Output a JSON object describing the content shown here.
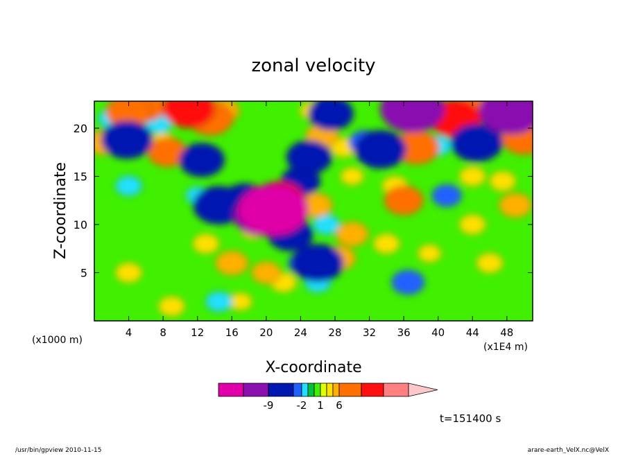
{
  "chart_data": {
    "type": "heatmap",
    "title": "zonal velocity",
    "xlabel": "X-coordinate",
    "ylabel": "Z-coordinate",
    "x_units_left": "(x1000 m)",
    "x_units_right": "(x1E4 m)",
    "xlim": [
      0,
      51
    ],
    "ylim": [
      0,
      22.8
    ],
    "x_ticks": [
      4,
      8,
      12,
      16,
      20,
      24,
      28,
      32,
      36,
      40,
      44,
      48
    ],
    "y_ticks": [
      5,
      10,
      15,
      20
    ],
    "colorbar": {
      "ticks": [
        {
          "value": -9,
          "label": "-9"
        },
        {
          "value": -2,
          "label": "-2"
        },
        {
          "value": 1,
          "label": "1"
        },
        {
          "value": 6,
          "label": "6"
        }
      ],
      "colors": [
        "#e000a8",
        "#8a10b0",
        "#0018b0",
        "#2060ff",
        "#20e0ff",
        "#00c040",
        "#40f000",
        "#e0ff00",
        "#ffe000",
        "#ffb000",
        "#ff7000",
        "#ff1010",
        "#ff8080",
        "#ffc8c8"
      ]
    },
    "annotation": "t=151400 s",
    "features": [
      {
        "x": 4,
        "z": 21.7,
        "v": 5
      },
      {
        "x": 6,
        "z": 22.2,
        "v": 4
      },
      {
        "x": 11,
        "z": 22,
        "v": 6
      },
      {
        "x": 13.5,
        "z": 21,
        "v": 5
      },
      {
        "x": 15,
        "z": 21.8,
        "v": 3
      },
      {
        "x": 2,
        "z": 21,
        "v": -2
      },
      {
        "x": 3.8,
        "z": 18.8,
        "v": -6
      },
      {
        "x": 1,
        "z": 18.5,
        "v": 3
      },
      {
        "x": 8.5,
        "z": 17.5,
        "v": 4
      },
      {
        "x": 8,
        "z": 18.5,
        "v": 2
      },
      {
        "x": 12.5,
        "z": 16.7,
        "v": -5
      },
      {
        "x": 7.5,
        "z": 20.5,
        "v": -2
      },
      {
        "x": 4,
        "z": 14,
        "v": -2
      },
      {
        "x": 12,
        "z": 13,
        "v": -1.5
      },
      {
        "x": 14.5,
        "z": 12,
        "v": -6
      },
      {
        "x": 17.5,
        "z": 12.5,
        "v": -5
      },
      {
        "x": 19.5,
        "z": 11,
        "v": -7
      },
      {
        "x": 20.8,
        "z": 11.5,
        "v": -9
      },
      {
        "x": 21.5,
        "z": 12.5,
        "v": 6
      },
      {
        "x": 22.5,
        "z": 12.5,
        "v": 4
      },
      {
        "x": 22.8,
        "z": 9,
        "v": -5
      },
      {
        "x": 24,
        "z": 14.5,
        "v": -4
      },
      {
        "x": 25,
        "z": 17,
        "v": -5
      },
      {
        "x": 26.5,
        "z": 19.2,
        "v": 3
      },
      {
        "x": 27.5,
        "z": 21.5,
        "v": -5
      },
      {
        "x": 25.5,
        "z": 21.8,
        "v": 2
      },
      {
        "x": 29,
        "z": 18,
        "v": 2
      },
      {
        "x": 31.5,
        "z": 18.5,
        "v": -3
      },
      {
        "x": 33.3,
        "z": 17.8,
        "v": -6
      },
      {
        "x": 30,
        "z": 15,
        "v": 1.5
      },
      {
        "x": 25.8,
        "z": 12,
        "v": 3
      },
      {
        "x": 26,
        "z": 6,
        "v": -6
      },
      {
        "x": 28.5,
        "z": 6.5,
        "v": 3
      },
      {
        "x": 26,
        "z": 4,
        "v": -2
      },
      {
        "x": 37,
        "z": 22,
        "v": -8
      },
      {
        "x": 37.5,
        "z": 18,
        "v": 5
      },
      {
        "x": 35,
        "z": 14,
        "v": 2
      },
      {
        "x": 36,
        "z": 12.5,
        "v": 4
      },
      {
        "x": 42,
        "z": 21,
        "v": 6
      },
      {
        "x": 44,
        "z": 22,
        "v": 4
      },
      {
        "x": 40,
        "z": 18.2,
        "v": -2
      },
      {
        "x": 44.5,
        "z": 18.5,
        "v": -6
      },
      {
        "x": 48.5,
        "z": 21.8,
        "v": -8
      },
      {
        "x": 50,
        "z": 19,
        "v": 5
      },
      {
        "x": 46,
        "z": 19,
        "v": 1
      },
      {
        "x": 44,
        "z": 15,
        "v": 2
      },
      {
        "x": 44,
        "z": 10,
        "v": 2
      },
      {
        "x": 49,
        "z": 12,
        "v": 3
      },
      {
        "x": 41,
        "z": 13,
        "v": -2.5
      },
      {
        "x": 36.5,
        "z": 4,
        "v": -3
      },
      {
        "x": 39,
        "z": 7,
        "v": 1.5
      },
      {
        "x": 4,
        "z": 5,
        "v": 2
      },
      {
        "x": 9,
        "z": 1.5,
        "v": 2
      },
      {
        "x": 13,
        "z": 8,
        "v": 2
      },
      {
        "x": 16,
        "z": 6,
        "v": 3
      },
      {
        "x": 14.5,
        "z": 2,
        "v": -2
      },
      {
        "x": 17,
        "z": 2,
        "v": 1.5
      },
      {
        "x": 20,
        "z": 5,
        "v": 2.5
      },
      {
        "x": 22,
        "z": 4,
        "v": 2
      },
      {
        "x": 18.5,
        "z": 9.5,
        "v": 2
      },
      {
        "x": 30,
        "z": 9,
        "v": 3
      },
      {
        "x": 27,
        "z": 10,
        "v": -2
      },
      {
        "x": 24.5,
        "z": 6,
        "v": -3
      },
      {
        "x": 34,
        "z": 8,
        "v": 2
      },
      {
        "x": 46,
        "z": 6,
        "v": 2
      },
      {
        "x": 47.5,
        "z": 14.5,
        "v": 2
      }
    ]
  },
  "footer": {
    "left": "/usr/bin/gpview   2010-11-15",
    "right": "arare-earth_VelX.nc@VelX"
  }
}
